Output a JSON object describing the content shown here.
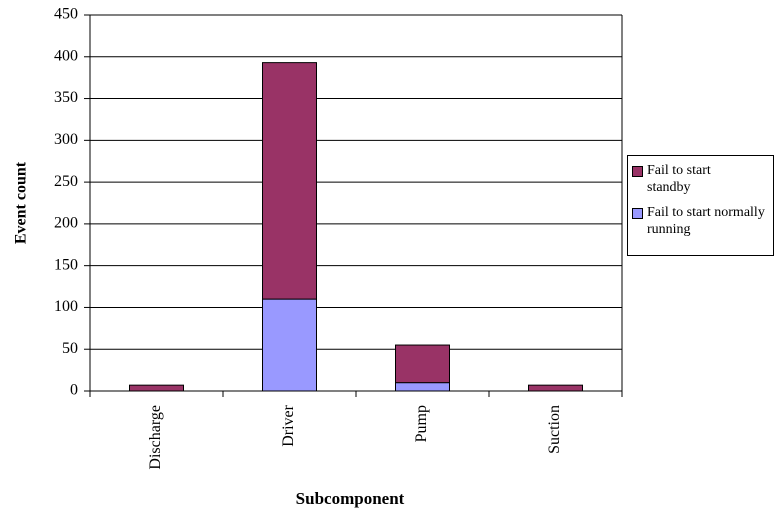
{
  "chart_data": {
    "type": "stacked_bar",
    "x_label": "Subcomponent",
    "y_label": "Event count",
    "categories": [
      "Discharge",
      "Driver",
      "Pump",
      "Suction"
    ],
    "series": [
      {
        "name": "Fail to start normally running",
        "color": "#9999ff",
        "values": [
          0,
          110,
          10,
          0
        ]
      },
      {
        "name": "Fail to start standby",
        "color": "#993366",
        "values": [
          7,
          283,
          45,
          7
        ]
      }
    ],
    "ylim": [
      0,
      450
    ],
    "yticks": [
      0,
      50,
      100,
      150,
      200,
      250,
      300,
      350,
      400,
      450
    ],
    "grid": true
  }
}
